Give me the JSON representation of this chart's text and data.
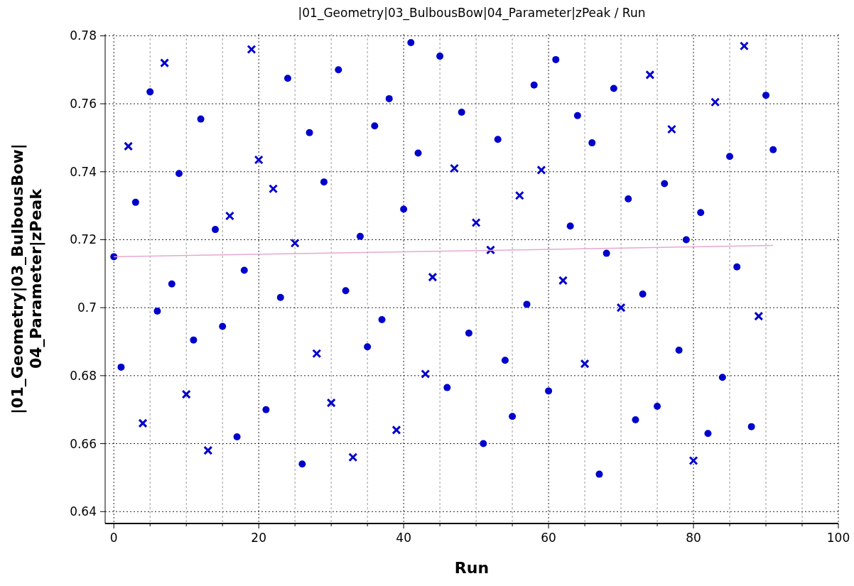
{
  "chart_data": {
    "type": "scatter",
    "title": "|01_Geometry|03_BulbousBow|04_Parameter|zPeak / Run",
    "xlabel": "Run",
    "ylabel": "|01_Geometry|03_BulbousBow|04_Parameter|zPeak",
    "xlim": [
      -1.2,
      100
    ],
    "ylim": [
      0.6365,
      0.7805
    ],
    "xticks": [
      0,
      {
        "value": 5,
        "label": null
      },
      20,
      {
        "value": 10,
        "label": null
      },
      {
        "value": 15,
        "label": null
      },
      {
        "value": 25,
        "label": null
      },
      {
        "value": 30,
        "label": null
      },
      {
        "value": 35,
        "label": null
      },
      40,
      {
        "value": 45,
        "label": null
      },
      {
        "value": 50,
        "label": null
      },
      {
        "value": 55,
        "label": null
      },
      60,
      {
        "value": 65,
        "label": null
      },
      {
        "value": 70,
        "label": null
      },
      {
        "value": 75,
        "label": null
      },
      80,
      {
        "value": 85,
        "label": null
      },
      {
        "value": 90,
        "label": null
      },
      {
        "value": 95,
        "label": null
      },
      100
    ],
    "yticks": [
      0.64,
      0.66,
      0.68,
      0.7,
      0.72,
      0.74,
      0.76,
      0.78
    ],
    "grid": true,
    "series": [
      {
        "marker": "circle",
        "color": "#0000cc",
        "x": [
          0,
          1,
          3,
          5,
          6,
          8,
          9,
          11,
          12,
          14,
          15,
          17,
          18,
          21,
          23,
          24,
          26,
          27,
          29,
          31,
          32,
          34,
          35,
          36,
          37,
          38,
          40,
          41,
          42,
          45,
          46,
          48,
          49,
          51,
          53,
          54,
          55,
          57,
          58,
          60,
          61,
          63,
          64,
          66,
          67,
          68,
          69,
          71,
          72,
          73,
          75,
          76,
          78,
          79,
          81,
          82,
          84,
          85,
          86,
          88,
          90,
          91
        ],
        "values": [
          0.715,
          0.6825,
          0.731,
          0.7635,
          0.699,
          0.707,
          0.7395,
          0.6905,
          0.7555,
          0.723,
          0.6945,
          0.662,
          0.711,
          0.67,
          0.703,
          0.7675,
          0.654,
          0.7515,
          0.737,
          0.77,
          0.705,
          0.721,
          0.6885,
          0.7535,
          0.6965,
          0.7615,
          0.729,
          0.778,
          0.7455,
          0.774,
          0.6765,
          0.7575,
          0.6925,
          0.66,
          0.7495,
          0.6845,
          0.668,
          0.701,
          0.7655,
          0.6755,
          0.773,
          0.724,
          0.7565,
          0.7485,
          0.651,
          0.716,
          0.7645,
          0.732,
          0.667,
          0.704,
          0.671,
          0.7365,
          0.6875,
          0.72,
          0.728,
          0.663,
          0.6795,
          0.7445,
          0.712,
          0.665,
          0.7625,
          0.7465
        ]
      },
      {
        "marker": "cross",
        "color": "#0000cc",
        "x": [
          2,
          4,
          7,
          10,
          13,
          16,
          19,
          20,
          22,
          25,
          28,
          30,
          33,
          39,
          43,
          44,
          47,
          50,
          52,
          56,
          59,
          62,
          65,
          70,
          74,
          77,
          80,
          83,
          87,
          89
        ],
        "values": [
          0.7475,
          0.666,
          0.772,
          0.6745,
          0.658,
          0.727,
          0.776,
          0.7435,
          0.735,
          0.719,
          0.6865,
          0.672,
          0.656,
          0.664,
          0.6805,
          0.709,
          0.741,
          0.725,
          0.717,
          0.733,
          0.7405,
          0.708,
          0.6835,
          0.7,
          0.7685,
          0.7525,
          0.655,
          0.7605,
          0.777,
          0.6975
        ]
      },
      {
        "type": "line",
        "marker": "none",
        "color": "#e8a8d0",
        "x": [
          0,
          91
        ],
        "values": [
          0.715,
          0.7183
        ]
      }
    ]
  }
}
